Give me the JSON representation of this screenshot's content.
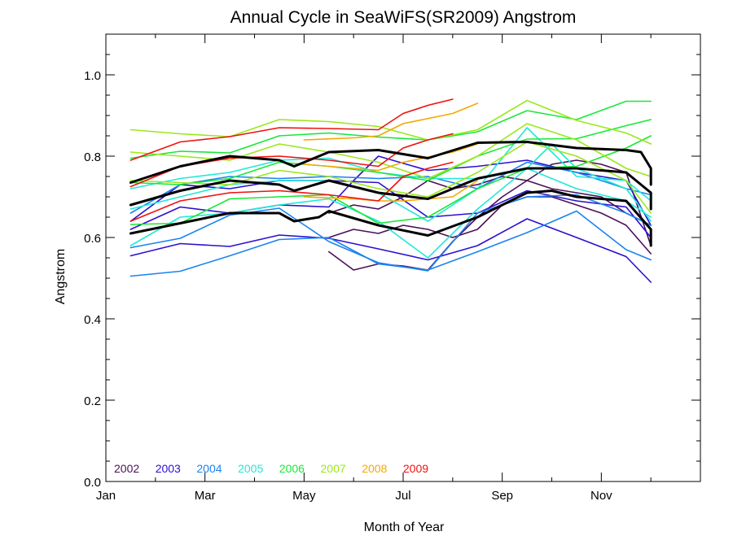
{
  "chart_data": {
    "type": "line",
    "title": "Annual Cycle in SeaWiFS(SR2009) Angstrom",
    "xlabel": "Month of Year",
    "ylabel": "Angstrom",
    "xlim": [
      0,
      12
    ],
    "ylim": [
      0,
      1.1
    ],
    "x_ticks": [
      0,
      2,
      4,
      6,
      8,
      10
    ],
    "x_tick_labels": [
      "Jan",
      "Mar",
      "May",
      "Jul",
      "Sep",
      "Nov"
    ],
    "y_ticks": [
      0,
      0.2,
      0.4,
      0.6,
      0.8,
      1.0
    ],
    "y_tick_labels": [
      "0.0",
      "0.2",
      "0.4",
      "0.6",
      "0.8",
      "1.0"
    ],
    "grid": false,
    "legend_position": "bottom-left, inside plot",
    "colors": {
      "2002": "#4b0f5a",
      "2003": "#2a10cf",
      "2004": "#1a83f0",
      "2005": "#22e8d8",
      "2006": "#18e838",
      "2007": "#9ae81c",
      "2008": "#f5a800",
      "2009": "#f01010",
      "climatology": "#000000"
    },
    "series": [
      {
        "name": "2002",
        "color": "#4b0f5a",
        "x": [
          4.5,
          5.0,
          5.5,
          6.0,
          6.5,
          7.0,
          7.5,
          8.0,
          8.5,
          9.0,
          9.5,
          10.0,
          10.5,
          11.0
        ],
        "y": [
          0.565,
          0.52,
          0.535,
          0.53,
          0.52,
          0.59,
          0.65,
          0.7,
          0.74,
          0.78,
          0.79,
          0.78,
          0.76,
          0.58
        ]
      },
      {
        "name": "2002",
        "color": "#4b0f5a",
        "x": [
          4.5,
          5.0,
          5.5,
          6.0,
          6.5,
          7.0,
          7.5,
          8.0,
          8.5,
          9.0,
          9.5,
          10.0,
          10.5,
          11.0
        ],
        "y": [
          0.66,
          0.68,
          0.67,
          0.7,
          0.74,
          0.72,
          0.73,
          0.75,
          0.74,
          0.72,
          0.71,
          0.7,
          0.66,
          0.63
        ]
      },
      {
        "name": "2002",
        "color": "#4b0f5a",
        "x": [
          4.5,
          5.0,
          5.5,
          6.0,
          6.5,
          7.0,
          7.5,
          8.0,
          8.5,
          9.0,
          9.5,
          10.0,
          10.5,
          11.0
        ],
        "y": [
          0.6,
          0.62,
          0.61,
          0.63,
          0.62,
          0.6,
          0.62,
          0.68,
          0.7,
          0.7,
          0.68,
          0.66,
          0.63,
          0.56
        ]
      },
      {
        "name": "2003",
        "color": "#2a10cf",
        "x": [
          0.5,
          1.5,
          2.5,
          3.5,
          4.5,
          5.5,
          6.5,
          7.5,
          8.5,
          9.5,
          10.5,
          11.0
        ],
        "y": [
          0.555,
          0.585,
          0.578,
          0.606,
          0.598,
          0.572,
          0.545,
          0.58,
          0.646,
          0.6,
          0.553,
          0.49
        ]
      },
      {
        "name": "2003",
        "color": "#2a10cf",
        "x": [
          0.5,
          1.5,
          2.5,
          3.5,
          4.5,
          5.0,
          5.5,
          6.5,
          7.5,
          8.5,
          9.5,
          10.5,
          11.0
        ],
        "y": [
          0.62,
          0.675,
          0.66,
          0.68,
          0.675,
          0.74,
          0.8,
          0.765,
          0.775,
          0.79,
          0.76,
          0.74,
          0.63
        ]
      },
      {
        "name": "2003",
        "color": "#2a10cf",
        "x": [
          0.5,
          1.5,
          2.5,
          3.5,
          4.5,
          5.5,
          6.5,
          7.5,
          8.5,
          9.5,
          10.5,
          11.0
        ],
        "y": [
          0.64,
          0.73,
          0.72,
          0.74,
          0.74,
          0.735,
          0.65,
          0.66,
          0.715,
          0.69,
          0.675,
          0.6
        ]
      },
      {
        "name": "2004",
        "color": "#1a83f0",
        "x": [
          0.5,
          1.5,
          2.5,
          3.5,
          4.5,
          5.5,
          6.5,
          7.5,
          8.5,
          9.5,
          10.5,
          11.0
        ],
        "y": [
          0.505,
          0.517,
          0.555,
          0.595,
          0.6,
          0.535,
          0.52,
          0.565,
          0.612,
          0.665,
          0.57,
          0.545
        ]
      },
      {
        "name": "2004",
        "color": "#1a83f0",
        "x": [
          0.5,
          1.5,
          2.5,
          3.5,
          4.5,
          5.5,
          6.5,
          7.5,
          8.5,
          9.5,
          10.5,
          11.0
        ],
        "y": [
          0.575,
          0.598,
          0.655,
          0.672,
          0.59,
          0.538,
          0.518,
          0.66,
          0.7,
          0.705,
          0.66,
          0.63
        ]
      },
      {
        "name": "2004",
        "color": "#1a83f0",
        "x": [
          0.5,
          1.5,
          2.5,
          3.5,
          4.5,
          5.5,
          6.5,
          7.5,
          8.5,
          9.5,
          10.5,
          11.0
        ],
        "y": [
          0.66,
          0.73,
          0.75,
          0.745,
          0.75,
          0.745,
          0.75,
          0.72,
          0.785,
          0.76,
          0.72,
          0.705
        ]
      },
      {
        "name": "2005",
        "color": "#22e8d8",
        "x": [
          0.5,
          1.5,
          2.5,
          3.5,
          4.5,
          5.5,
          6.5,
          7.5,
          8.5,
          9.0,
          9.5,
          10.5,
          11.0
        ],
        "y": [
          0.58,
          0.65,
          0.66,
          0.68,
          0.695,
          0.64,
          0.55,
          0.67,
          0.77,
          0.83,
          0.77,
          0.72,
          0.64
        ]
      },
      {
        "name": "2005",
        "color": "#22e8d8",
        "x": [
          0.5,
          1.5,
          2.5,
          3.5,
          4.5,
          5.5,
          6.5,
          7.5,
          8.5,
          9.5,
          10.5,
          11.0
        ],
        "y": [
          0.67,
          0.7,
          0.73,
          0.74,
          0.74,
          0.71,
          0.64,
          0.72,
          0.87,
          0.75,
          0.74,
          0.69
        ]
      },
      {
        "name": "2005",
        "color": "#22e8d8",
        "x": [
          0.5,
          1.5,
          2.5,
          3.5,
          4.5,
          5.5,
          6.5,
          7.5,
          8.5,
          9.5,
          10.5,
          11.0
        ],
        "y": [
          0.72,
          0.745,
          0.76,
          0.79,
          0.795,
          0.76,
          0.745,
          0.745,
          0.77,
          0.72,
          0.69,
          0.65
        ]
      },
      {
        "name": "2006",
        "color": "#18e838",
        "x": [
          0.5,
          1.5,
          2.5,
          3.5,
          4.5,
          5.5,
          6.5,
          7.5,
          8.5,
          9.5,
          10.5,
          11.0
        ],
        "y": [
          0.795,
          0.812,
          0.808,
          0.85,
          0.857,
          0.847,
          0.84,
          0.86,
          0.912,
          0.89,
          0.935,
          0.935
        ]
      },
      {
        "name": "2006",
        "color": "#18e838",
        "x": [
          0.5,
          1.5,
          2.5,
          3.5,
          4.5,
          5.5,
          6.5,
          7.5,
          8.5,
          9.5,
          10.5,
          11.0
        ],
        "y": [
          0.735,
          0.73,
          0.745,
          0.785,
          0.775,
          0.76,
          0.74,
          0.8,
          0.842,
          0.843,
          0.875,
          0.89
        ]
      },
      {
        "name": "2006",
        "color": "#18e838",
        "x": [
          0.5,
          1.5,
          2.5,
          3.5,
          4.5,
          5.5,
          6.5,
          7.5,
          8.5,
          9.5,
          10.5,
          11.0
        ],
        "y": [
          0.632,
          0.635,
          0.695,
          0.7,
          0.705,
          0.635,
          0.65,
          0.72,
          0.77,
          0.775,
          0.82,
          0.85
        ]
      },
      {
        "name": "2007",
        "color": "#9ae81c",
        "x": [
          0.5,
          1.5,
          2.5,
          3.5,
          4.5,
          5.5,
          6.5,
          7.5,
          8.5,
          9.5,
          10.5,
          11.0
        ],
        "y": [
          0.865,
          0.855,
          0.848,
          0.89,
          0.885,
          0.873,
          0.84,
          0.865,
          0.937,
          0.888,
          0.857,
          0.83
        ]
      },
      {
        "name": "2007",
        "color": "#9ae81c",
        "x": [
          0.5,
          1.5,
          2.5,
          3.5,
          4.5,
          5.5,
          6.5,
          7.5,
          8.5,
          9.5,
          10.5,
          11.0
        ],
        "y": [
          0.81,
          0.8,
          0.79,
          0.83,
          0.81,
          0.785,
          0.745,
          0.8,
          0.88,
          0.84,
          0.77,
          0.75
        ]
      },
      {
        "name": "2007",
        "color": "#9ae81c",
        "x": [
          0.5,
          1.5,
          2.5,
          3.5,
          4.5,
          5.5,
          6.5,
          7.5,
          8.5,
          9.5,
          10.5,
          11.0
        ],
        "y": [
          0.74,
          0.735,
          0.73,
          0.765,
          0.75,
          0.72,
          0.7,
          0.76,
          0.835,
          0.8,
          0.74,
          0.66
        ]
      },
      {
        "name": "2008",
        "color": "#f5a800",
        "x": [
          4.0,
          5.0,
          5.5,
          6.0,
          7.0,
          7.5
        ],
        "y": [
          0.84,
          0.845,
          0.85,
          0.88,
          0.905,
          0.93
        ]
      },
      {
        "name": "2008",
        "color": "#f5a800",
        "x": [
          4.0,
          5.0,
          5.5,
          6.0,
          7.0,
          7.5
        ],
        "y": [
          0.78,
          0.77,
          0.765,
          0.785,
          0.81,
          0.83
        ]
      },
      {
        "name": "2008",
        "color": "#f5a800",
        "x": [
          4.0,
          5.0,
          5.5,
          6.0,
          7.0,
          7.5
        ],
        "y": [
          0.7,
          0.695,
          0.69,
          0.69,
          0.7,
          0.74
        ]
      },
      {
        "name": "2009",
        "color": "#f01010",
        "x": [
          0.5,
          1.5,
          2.5,
          3.5,
          4.5,
          5.5,
          6.0,
          6.5,
          7.0
        ],
        "y": [
          0.79,
          0.835,
          0.848,
          0.87,
          0.868,
          0.865,
          0.905,
          0.925,
          0.94
        ]
      },
      {
        "name": "2009",
        "color": "#f01010",
        "x": [
          0.5,
          1.5,
          2.5,
          3.5,
          4.5,
          5.5,
          6.0,
          6.5,
          7.0
        ],
        "y": [
          0.725,
          0.775,
          0.795,
          0.8,
          0.79,
          0.775,
          0.82,
          0.84,
          0.855
        ]
      },
      {
        "name": "2009",
        "color": "#f01010",
        "x": [
          0.5,
          1.5,
          2.5,
          3.5,
          4.5,
          5.5,
          6.0,
          6.5,
          7.0
        ],
        "y": [
          0.64,
          0.69,
          0.71,
          0.715,
          0.705,
          0.69,
          0.75,
          0.77,
          0.785
        ]
      },
      {
        "name": "",
        "color": "#000000",
        "thick": true,
        "x": [
          0.5,
          1.5,
          2.5,
          3.5,
          3.8,
          4.5,
          5.5,
          6.5,
          7.5,
          8.5,
          9.5,
          10.5,
          10.8,
          11.0,
          11.0
        ],
        "y": [
          0.735,
          0.775,
          0.8,
          0.79,
          0.775,
          0.81,
          0.815,
          0.795,
          0.833,
          0.835,
          0.82,
          0.815,
          0.81,
          0.77,
          0.73
        ]
      },
      {
        "name": "",
        "color": "#000000",
        "thick": true,
        "x": [
          0.5,
          1.5,
          2.5,
          3.5,
          3.8,
          4.5,
          5.5,
          6.5,
          7.5,
          8.5,
          9.5,
          10.5,
          11.0,
          11.0
        ],
        "y": [
          0.68,
          0.715,
          0.74,
          0.73,
          0.715,
          0.74,
          0.71,
          0.695,
          0.745,
          0.77,
          0.77,
          0.76,
          0.71,
          0.67
        ]
      },
      {
        "name": "",
        "color": "#000000",
        "thick": true,
        "x": [
          0.5,
          1.5,
          2.5,
          3.5,
          3.8,
          4.3,
          4.5,
          5.5,
          6.5,
          7.5,
          8.5,
          9.0,
          9.5,
          10.5,
          11.0,
          11.0
        ],
        "y": [
          0.61,
          0.635,
          0.66,
          0.66,
          0.64,
          0.65,
          0.665,
          0.63,
          0.605,
          0.65,
          0.71,
          0.715,
          0.7,
          0.69,
          0.62,
          0.58
        ]
      }
    ],
    "legend": [
      {
        "label": "2002",
        "color": "#4b0f5a"
      },
      {
        "label": "2003",
        "color": "#2a10cf"
      },
      {
        "label": "2004",
        "color": "#1a83f0"
      },
      {
        "label": "2005",
        "color": "#22e8d8"
      },
      {
        "label": "2006",
        "color": "#18e838"
      },
      {
        "label": "2007",
        "color": "#9ae81c"
      },
      {
        "label": "2008",
        "color": "#f5a800"
      },
      {
        "label": "2009",
        "color": "#f01010"
      }
    ]
  }
}
